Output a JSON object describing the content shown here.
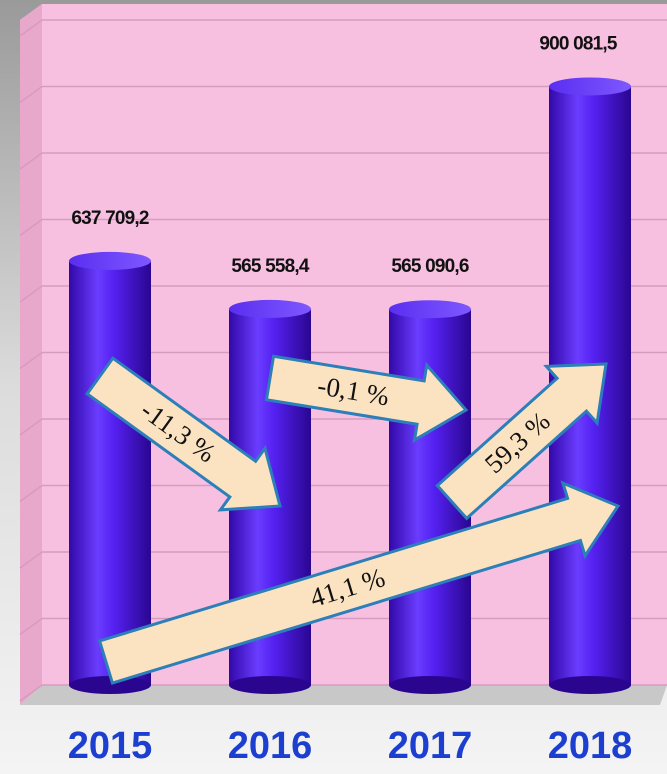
{
  "chart_data": {
    "type": "bar",
    "categories": [
      "2015",
      "2016",
      "2017",
      "2018"
    ],
    "values": [
      637709.2,
      565558.4,
      565090.6,
      900081.5
    ],
    "value_labels": [
      "637 709,2",
      "565 558,4",
      "565 090,6",
      "900 081,5"
    ],
    "color": "#4a12e6",
    "ylim": [
      0,
      1000000
    ],
    "yticks": [
      0,
      100000,
      200000,
      300000,
      400000,
      500000,
      600000,
      700000,
      800000,
      900000,
      1000000
    ],
    "grid": true,
    "annotations": [
      "-11,3 %",
      "-0,1 %",
      "59,3 %",
      "41,1 %"
    ]
  }
}
